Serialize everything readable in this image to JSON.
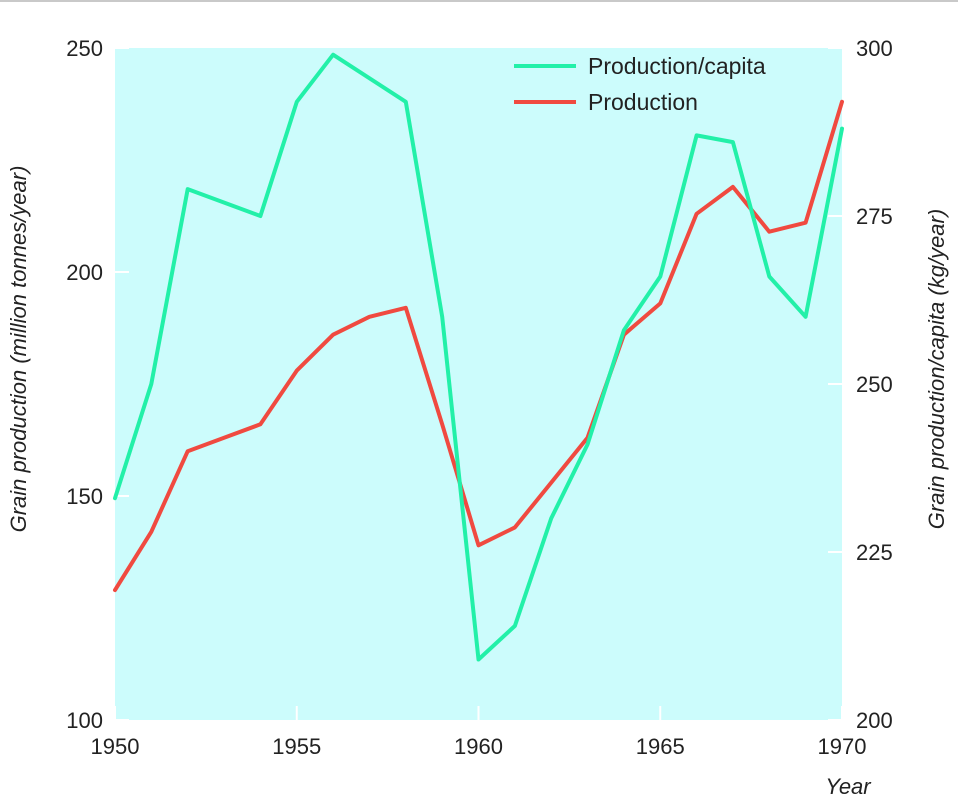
{
  "chart_data": {
    "type": "line",
    "title": "",
    "xlabel": "Year",
    "ylabel": "Grain production (million tonnes/year)",
    "y2label": "Grain production/capita (kg/year)",
    "xlim": [
      1950,
      1970
    ],
    "ylim": [
      100,
      250
    ],
    "y2lim": [
      200,
      300
    ],
    "x_ticks": [
      1950,
      1955,
      1960,
      1965,
      1970
    ],
    "y_ticks": [
      100,
      150,
      200,
      250
    ],
    "y2_ticks": [
      200,
      225,
      250,
      275,
      300
    ],
    "grid": false,
    "background": "#ccfcfc",
    "legend_position": "top-right",
    "series": [
      {
        "name": "Production/capita",
        "axis": "right",
        "color": "#22f0a8",
        "x": [
          1950,
          1951,
          1952,
          1954,
          1955,
          1956,
          1958,
          1959,
          1960,
          1961,
          1962,
          1963,
          1964,
          1965,
          1966,
          1967,
          1968,
          1969,
          1970
        ],
        "y": [
          233,
          250,
          279,
          275,
          292,
          299,
          292,
          260,
          209,
          214,
          230,
          241,
          258,
          266,
          287,
          286,
          266,
          260,
          288
        ]
      },
      {
        "name": "Production",
        "axis": "left",
        "color": "#f04a40",
        "x": [
          1950,
          1951,
          1952,
          1953,
          1954,
          1955,
          1956,
          1957,
          1958,
          1959,
          1960,
          1961,
          1962,
          1963,
          1964,
          1965,
          1966,
          1967,
          1968,
          1969,
          1970
        ],
        "y": [
          129,
          142,
          160,
          163,
          166,
          178,
          186,
          190,
          192,
          166,
          139,
          143,
          153,
          163,
          186,
          193,
          213,
          219,
          209,
          211,
          238
        ]
      }
    ]
  }
}
